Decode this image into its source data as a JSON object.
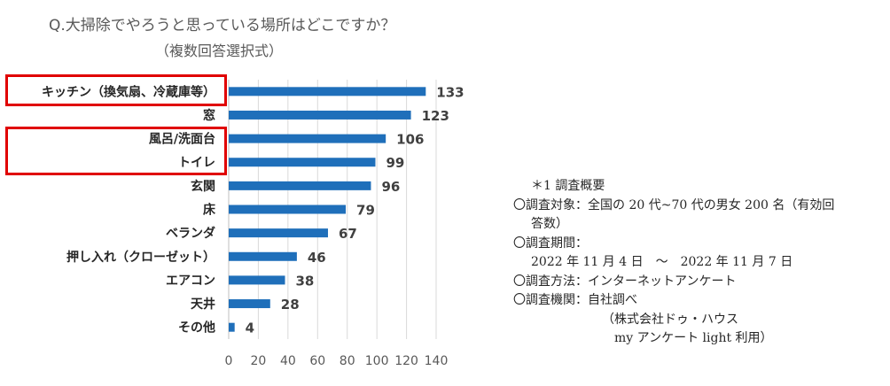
{
  "chart_data": {
    "type": "bar",
    "orientation": "horizontal",
    "title": "Q.大掃除でやろうと思っている場所はどこですか？",
    "subtitle": "（複数回答選択式）",
    "categories": [
      "キッチン（換気扇、冷蔵庫等）",
      "窓",
      "風呂/洗面台",
      "トイレ",
      "玄関",
      "床",
      "ベランダ",
      "押し入れ（クローゼット）",
      "エアコン",
      "天井",
      "その他"
    ],
    "values": [
      133,
      123,
      106,
      99,
      96,
      79,
      67,
      46,
      38,
      28,
      4
    ],
    "xlim": [
      0,
      140
    ],
    "xticks": [
      "0",
      "20",
      "40",
      "60",
      "80",
      "100",
      "120",
      "140"
    ],
    "grid": true,
    "bar_color": "#1f6fba",
    "highlighted_categories": [
      "キッチン（換気扇、冷蔵庫等）",
      "風呂/洗面台",
      "トイレ"
    ],
    "highlight_color": "#e00000"
  },
  "notes": [
    "＊1 調査概要",
    "〇調査対象：全国の 20 代~70 代の男女 200 名（有効回",
    "答数）",
    "〇調査期間：",
    "2022 年 11 月 4 日　～　2022 年 11 月 7 日",
    "〇調査方法：インターネットアンケート",
    "〇調査機関：自社調べ",
    "（株式会社ドゥ・ハウス",
    "my アンケート light 利用）"
  ]
}
